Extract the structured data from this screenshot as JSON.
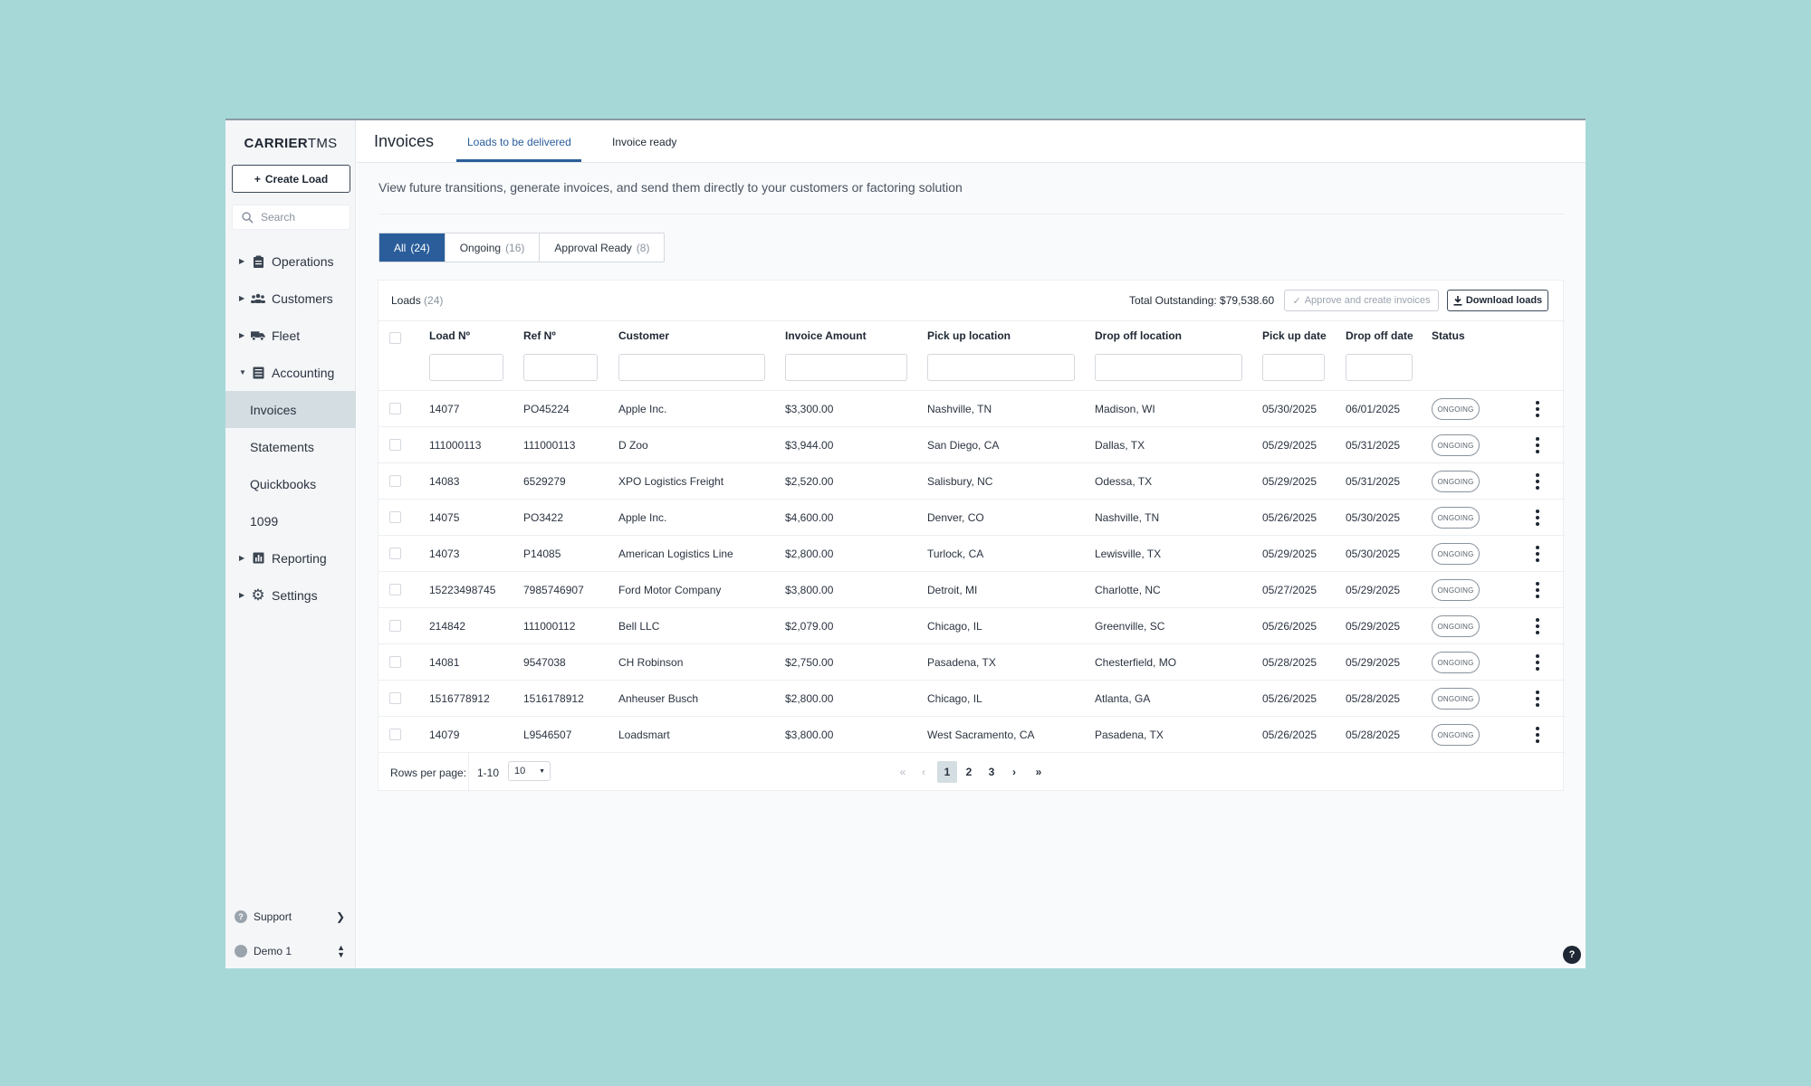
{
  "app": {
    "logo_bold": "CARRIER",
    "logo_light": "TMS"
  },
  "sidebar": {
    "create_label": "Create Load",
    "search_placeholder": "Search",
    "items": [
      {
        "label": "Operations",
        "icon": "clipboard-icon"
      },
      {
        "label": "Customers",
        "icon": "users-icon"
      },
      {
        "label": "Fleet",
        "icon": "truck-icon"
      },
      {
        "label": "Accounting",
        "icon": "ledger-icon"
      },
      {
        "label": "Reporting",
        "icon": "bar-chart-icon"
      },
      {
        "label": "Settings",
        "icon": "gear-icon"
      }
    ],
    "accounting_sub": [
      "Invoices",
      "Statements",
      "Quickbooks",
      "1099"
    ],
    "support_label": "Support",
    "user_label": "Demo 1"
  },
  "header": {
    "title": "Invoices",
    "tabs": [
      "Loads to be delivered",
      "Invoice ready"
    ]
  },
  "description": "View future transitions, generate invoices, and send them directly to your customers or factoring solution",
  "filters": [
    {
      "label": "All",
      "count": "(24)"
    },
    {
      "label": "Ongoing",
      "count": "(16)"
    },
    {
      "label": "Approval Ready",
      "count": "(8)"
    }
  ],
  "card": {
    "title": "Loads",
    "count": "(24)",
    "outstanding": "Total Outstanding: $79,538.60",
    "approve_label": "Approve and create invoices",
    "download_label": "Download loads"
  },
  "columns": [
    "Load Nº",
    "Ref Nº",
    "Customer",
    "Invoice Amount",
    "Pick up location",
    "Drop off location",
    "Pick up date",
    "Drop off date",
    "Status"
  ],
  "rows": [
    [
      "14077",
      "PO45224",
      "Apple Inc.",
      "$3,300.00",
      "Nashville, TN",
      "Madison, WI",
      "05/30/2025",
      "06/01/2025",
      "ONGOING"
    ],
    [
      "111000113",
      "111000113",
      "D Zoo",
      "$3,944.00",
      "San Diego, CA",
      "Dallas, TX",
      "05/29/2025",
      "05/31/2025",
      "ONGOING"
    ],
    [
      "14083",
      "6529279",
      "XPO Logistics Freight",
      "$2,520.00",
      "Salisbury, NC",
      "Odessa, TX",
      "05/29/2025",
      "05/31/2025",
      "ONGOING"
    ],
    [
      "14075",
      "PO3422",
      "Apple Inc.",
      "$4,600.00",
      "Denver, CO",
      "Nashville, TN",
      "05/26/2025",
      "05/30/2025",
      "ONGOING"
    ],
    [
      "14073",
      "P14085",
      "American Logistics Line",
      "$2,800.00",
      "Turlock, CA",
      "Lewisville, TX",
      "05/29/2025",
      "05/30/2025",
      "ONGOING"
    ],
    [
      "15223498745",
      "7985746907",
      "Ford Motor Company",
      "$3,800.00",
      "Detroit, MI",
      "Charlotte, NC",
      "05/27/2025",
      "05/29/2025",
      "ONGOING"
    ],
    [
      "214842",
      "111000112",
      "Bell LLC",
      "$2,079.00",
      "Chicago, IL",
      "Greenville, SC",
      "05/26/2025",
      "05/29/2025",
      "ONGOING"
    ],
    [
      "14081",
      "9547038",
      "CH Robinson",
      "$2,750.00",
      "Pasadena, TX",
      "Chesterfield, MO",
      "05/28/2025",
      "05/29/2025",
      "ONGOING"
    ],
    [
      "1516778912",
      "1516178912",
      "Anheuser Busch",
      "$2,800.00",
      "Chicago, IL",
      "Atlanta, GA",
      "05/26/2025",
      "05/28/2025",
      "ONGOING"
    ],
    [
      "14079",
      "L9546507",
      "Loadsmart",
      "$3,800.00",
      "West Sacramento, CA",
      "Pasadena, TX",
      "05/26/2025",
      "05/28/2025",
      "ONGOING"
    ]
  ],
  "pager": {
    "rows_per_page_label": "Rows per page:",
    "range": "1-10",
    "page_size": "10",
    "pages": [
      "1",
      "2",
      "3"
    ],
    "current_page": "1"
  },
  "colors": {
    "accent": "#2a5d9a",
    "background": "#a7d8d8"
  }
}
